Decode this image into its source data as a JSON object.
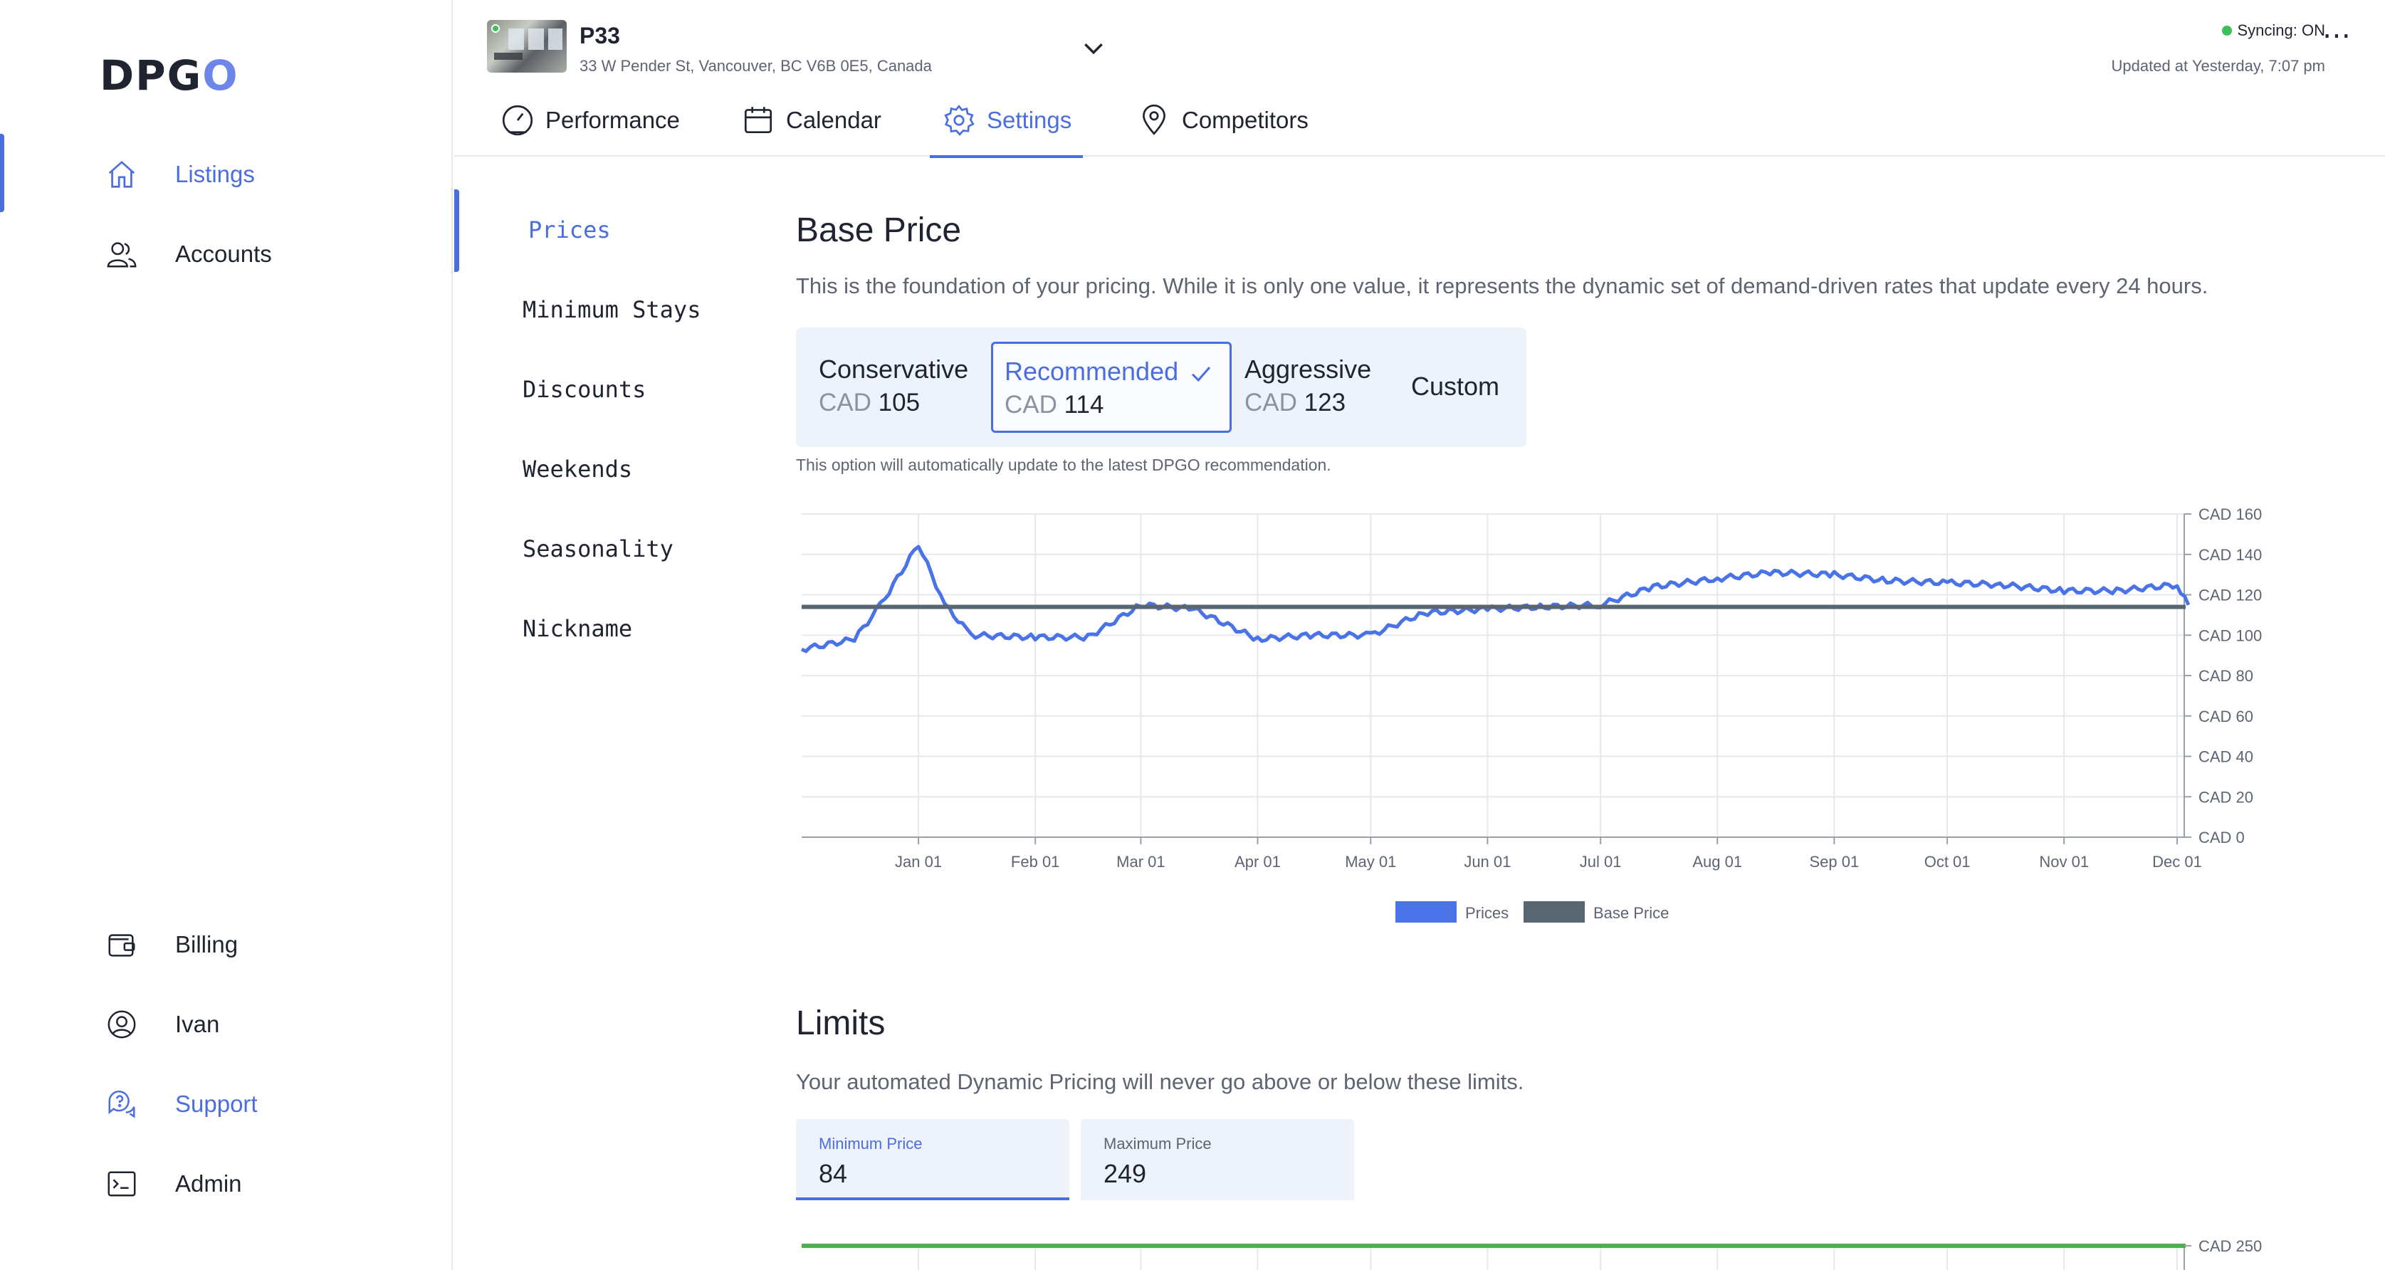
{
  "app": {
    "logo": "DPGO"
  },
  "sidebar": {
    "items": [
      {
        "label": "Listings",
        "icon": "home-icon",
        "active": true
      },
      {
        "label": "Accounts",
        "icon": "users-icon"
      }
    ],
    "bottom_items": [
      {
        "label": "Billing",
        "icon": "wallet-icon"
      },
      {
        "label": "Ivan",
        "icon": "user-circle-icon"
      },
      {
        "label": "Support",
        "icon": "support-chat-icon"
      },
      {
        "label": "Admin",
        "icon": "terminal-icon"
      }
    ]
  },
  "header": {
    "listing_name": "P33",
    "listing_address": "33 W Pender St, Vancouver, BC V6B 0E5, Canada",
    "sync_status": "Syncing: ON",
    "updated_at": "Updated at Yesterday, 7:07 pm",
    "more_label": "⋯",
    "tabs": [
      {
        "label": "Performance",
        "icon": "speedometer-icon"
      },
      {
        "label": "Calendar",
        "icon": "calendar-icon"
      },
      {
        "label": "Settings",
        "icon": "gear-icon",
        "active": true
      },
      {
        "label": "Competitors",
        "icon": "location-pin-icon"
      }
    ]
  },
  "settings_nav": {
    "items": [
      "Prices",
      "Minimum Stays",
      "Discounts",
      "Weekends",
      "Seasonality",
      "Nickname"
    ],
    "active": "Prices"
  },
  "base_price": {
    "title": "Base Price",
    "description": "This is the foundation of your pricing. While it is only one value, it represents the dynamic set of demand-driven rates that update every 24 hours.",
    "currency": "CAD",
    "options": [
      {
        "name": "Conservative",
        "price": "105"
      },
      {
        "name": "Recommended",
        "price": "114",
        "selected": true
      },
      {
        "name": "Aggressive",
        "price": "123"
      },
      {
        "name": "Custom",
        "price": ""
      }
    ],
    "note": "This option will automatically update to the latest DPGO recommendation."
  },
  "chart_data": {
    "type": "line",
    "y_ticks": [
      "CAD 160",
      "CAD 140",
      "CAD 120",
      "CAD 100",
      "CAD 80",
      "CAD 60",
      "CAD 40",
      "CAD 20",
      "CAD 0"
    ],
    "ylim": [
      0,
      160
    ],
    "x_ticks": [
      "Jan 01",
      "Feb 01",
      "Mar 01",
      "Apr 01",
      "May 01",
      "Jun 01",
      "Jul 01",
      "Aug 01",
      "Sep 01",
      "Oct 01",
      "Nov 01",
      "Dec 01"
    ],
    "grid": true,
    "legend_placement": "bottom-center",
    "series": [
      {
        "name": "Prices",
        "color": "#4a73e8",
        "x": [
          "Dec 01",
          "Dec 15",
          "Dec 22",
          "Jan 01",
          "Jan 08",
          "Jan 15",
          "Feb 01",
          "Feb 15",
          "Mar 01",
          "Mar 15",
          "Apr 01",
          "Apr 15",
          "May 01",
          "May 15",
          "Jun 01",
          "Jun 15",
          "Jul 01",
          "Jul 15",
          "Aug 01",
          "Aug 15",
          "Sep 01",
          "Sep 15",
          "Oct 01",
          "Oct 15",
          "Nov 01",
          "Nov 15",
          "Dec 01",
          "Dec 04"
        ],
        "values": [
          93,
          98,
          115,
          145,
          115,
          100,
          99,
          99,
          115,
          113,
          98,
          100,
          100,
          111,
          113,
          114,
          115,
          124,
          128,
          131,
          130,
          127,
          126,
          125,
          122,
          122,
          125,
          115
        ]
      },
      {
        "name": "Base Price",
        "color": "#5a6572",
        "values": [
          114
        ]
      }
    ]
  },
  "limits": {
    "title": "Limits",
    "description": "Your automated Dynamic Pricing will never go above or below these limits.",
    "min_label": "Minimum Price",
    "min_value": "84",
    "max_label": "Maximum Price",
    "max_value": "249",
    "chart_top_tick": "CAD 250"
  },
  "colors": {
    "accent": "#4a6ee0",
    "panel": "#eef2fb",
    "sync_on": "#3fbf5a",
    "limit_line": "#4caf50"
  }
}
